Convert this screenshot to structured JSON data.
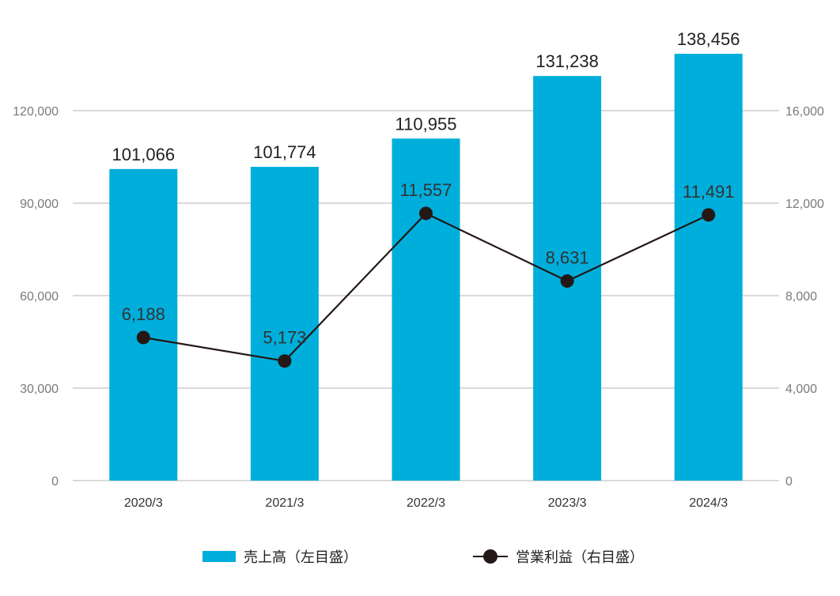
{
  "chart_data": {
    "type": "bar",
    "categories": [
      "2020/3",
      "2021/3",
      "2022/3",
      "2023/3",
      "2024/3"
    ],
    "series": [
      {
        "name": "売上高（左目盛）",
        "type": "bar",
        "axis": "left",
        "values": [
          101066,
          101774,
          110955,
          131238,
          138456
        ],
        "labels": [
          "101,066",
          "101,774",
          "110,955",
          "131,238",
          "138,456"
        ]
      },
      {
        "name": "営業利益（右目盛）",
        "type": "line",
        "axis": "right",
        "values": [
          6188,
          5173,
          11557,
          8631,
          11491
        ],
        "labels": [
          "6,188",
          "5,173",
          "11,557",
          "8,631",
          "11,491"
        ]
      }
    ],
    "y_left": {
      "ticks": [
        0,
        30000,
        60000,
        90000,
        120000
      ],
      "tick_labels": [
        "0",
        "30,000",
        "60,000",
        "90,000",
        "120,000"
      ]
    },
    "y_right": {
      "ticks": [
        0,
        4000,
        8000,
        12000,
        16000
      ],
      "tick_labels": [
        "0",
        "4,000",
        "8,000",
        "12,000",
        "16,000"
      ]
    },
    "grid": true,
    "legend_position": "bottom",
    "colors": {
      "bar": "#00aedb",
      "line": "#231815",
      "grid": "#b5b5b5"
    }
  }
}
